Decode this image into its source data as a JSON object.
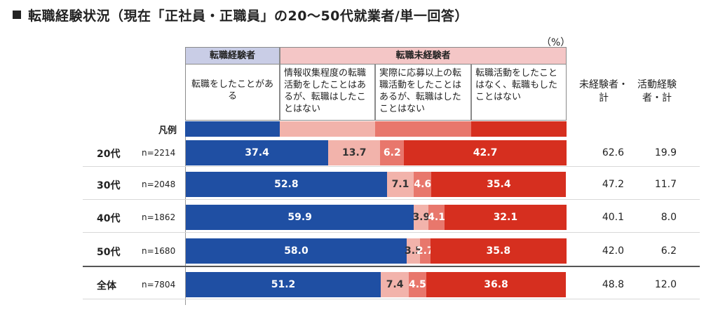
{
  "title": "転職経験状況（現在「正社員・正職員」の20～50代就業者/単一回答）",
  "unit": "（%）",
  "header": {
    "experienced": "転職経験者",
    "non_experienced": "転職未経験者",
    "cat_a": "転職をしたことがある",
    "cat_b": "情報収集程度の転職活動をしたことはあるが、転職はしたことはない",
    "cat_c": "実際に応募以上の転職活動をしたことはあるが、転職はしたことはない",
    "cat_d": "転職活動をしたことはなく、転職もしたことはない",
    "legend_label": "凡例",
    "sum1": "未経験者・計",
    "sum2": "活動経験者・計"
  },
  "colors": {
    "a": "#1f4fa3",
    "b": "#f2b3ab",
    "c": "#e8776c",
    "d": "#d62f1f"
  },
  "chart_data": {
    "type": "bar",
    "orientation": "horizontal-stacked-100",
    "categories": [
      "20代",
      "30代",
      "40代",
      "50代",
      "全体"
    ],
    "n": [
      "n=2214",
      "n=2048",
      "n=1862",
      "n=1680",
      "n=7804"
    ],
    "series": [
      {
        "name": "転職をしたことがある",
        "values": [
          37.4,
          52.8,
          59.9,
          58.0,
          51.2
        ]
      },
      {
        "name": "情報収集程度の転職活動をしたことはあるが、転職はしたことはない",
        "values": [
          13.7,
          7.1,
          3.9,
          3.5,
          7.4
        ]
      },
      {
        "name": "実際に応募以上の転職活動をしたことはあるが、転職はしたことはない",
        "values": [
          6.2,
          4.6,
          4.1,
          2.7,
          4.5
        ]
      },
      {
        "name": "転職活動をしたことはなく、転職もしたことはない",
        "values": [
          42.7,
          35.4,
          32.1,
          35.8,
          36.8
        ]
      }
    ],
    "labels": [
      [
        "37.4",
        "13.7",
        "6.2",
        "42.7"
      ],
      [
        "52.8",
        "7.1",
        "4.6",
        "35.4"
      ],
      [
        "59.9",
        "3.9",
        "4.1",
        "32.1"
      ],
      [
        "58.0",
        "3.5",
        "2.7",
        "35.8"
      ],
      [
        "51.2",
        "7.4",
        "4.5",
        "36.8"
      ]
    ],
    "summary": {
      "未経験者・計": [
        "62.6",
        "47.2",
        "40.1",
        "42.0",
        "48.8"
      ],
      "活動経験者・計": [
        "19.9",
        "11.7",
        "8.0",
        "6.2",
        "12.0"
      ]
    },
    "xlim": [
      0,
      100
    ]
  }
}
